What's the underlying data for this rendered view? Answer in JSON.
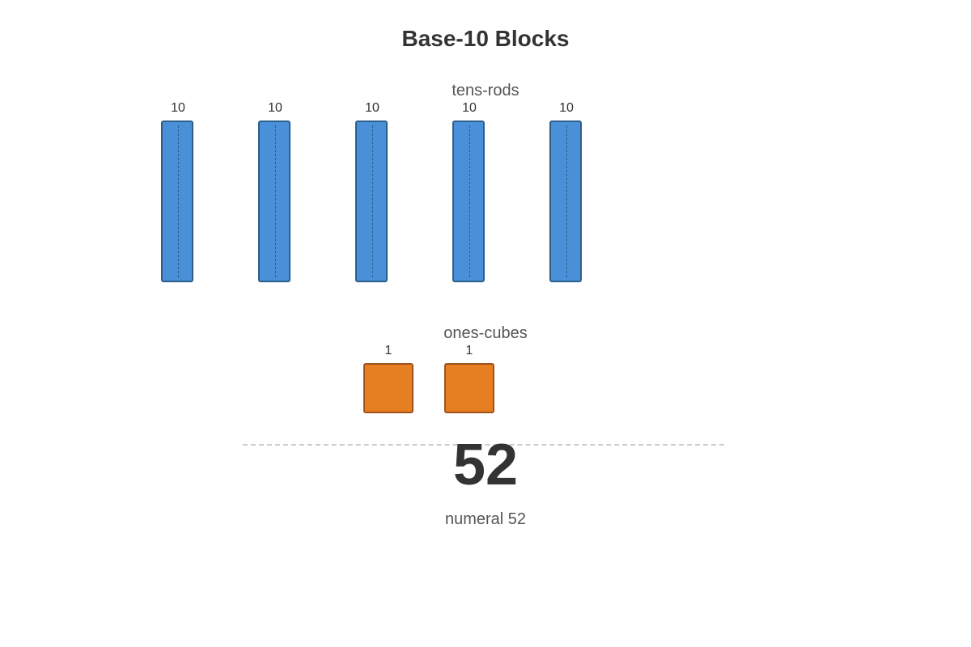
{
  "title": "Base-10 Blocks",
  "tens": {
    "label": "tens-rods",
    "color": "#4a90d9",
    "rods": [
      {
        "value": "10"
      },
      {
        "value": "10"
      },
      {
        "value": "10"
      },
      {
        "value": "10"
      },
      {
        "value": "10"
      }
    ]
  },
  "ones": {
    "label": "ones-cubes",
    "color": "#e67e22",
    "cubes": [
      {
        "value": "1"
      },
      {
        "value": "1"
      }
    ]
  },
  "numeral": "52",
  "caption": "numeral 52"
}
